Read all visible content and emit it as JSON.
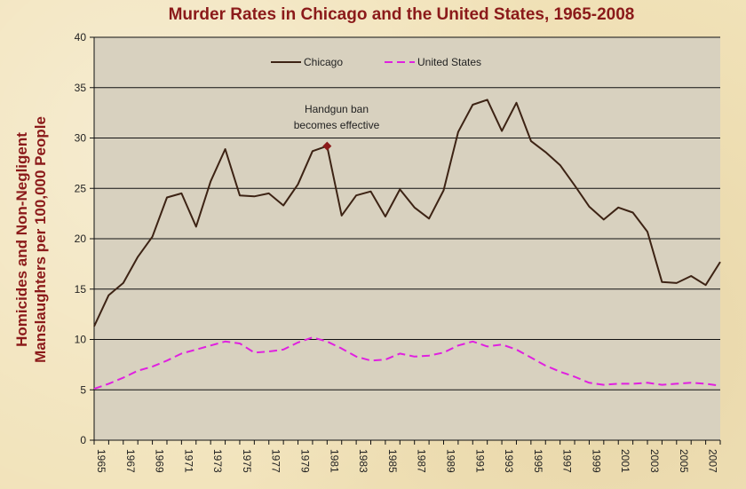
{
  "chart_data": {
    "type": "line",
    "title": "Murder Rates in Chicago and the United States, 1965-2008",
    "ylabel_line1": "Homicides and Non-Negligent",
    "ylabel_line2": "Manslaughters per 100,000 People",
    "xlabel": "",
    "ylim": [
      0,
      40
    ],
    "yticks": [
      0,
      5,
      10,
      15,
      20,
      25,
      30,
      35,
      40
    ],
    "x": [
      1965,
      1966,
      1967,
      1968,
      1969,
      1970,
      1971,
      1972,
      1973,
      1974,
      1975,
      1976,
      1977,
      1978,
      1979,
      1980,
      1981,
      1982,
      1983,
      1984,
      1985,
      1986,
      1987,
      1988,
      1989,
      1990,
      1991,
      1992,
      1993,
      1994,
      1995,
      1996,
      1997,
      1998,
      1999,
      2000,
      2001,
      2002,
      2003,
      2004,
      2005,
      2006,
      2007,
      2008
    ],
    "xtick_labels": [
      "1965",
      "1967",
      "1969",
      "1971",
      "1973",
      "1975",
      "1977",
      "1979",
      "1981",
      "1983",
      "1985",
      "1987",
      "1989",
      "1991",
      "1993",
      "1995",
      "1997",
      "1999",
      "2001",
      "2003",
      "2005",
      "2007"
    ],
    "series": [
      {
        "name": "Chicago",
        "color": "#3d2314",
        "dash": "solid",
        "values": [
          11.3,
          14.4,
          15.6,
          18.2,
          20.2,
          24.1,
          24.5,
          21.2,
          25.7,
          28.9,
          24.3,
          24.2,
          24.5,
          23.3,
          25.4,
          28.7,
          29.2,
          22.3,
          24.3,
          24.7,
          22.2,
          24.9,
          23.1,
          22.0,
          24.8,
          30.6,
          33.3,
          33.8,
          30.7,
          33.5,
          29.7,
          28.6,
          27.3,
          25.3,
          23.2,
          21.9,
          23.1,
          22.6,
          20.7,
          15.7,
          15.6,
          16.3,
          15.4,
          17.7
        ]
      },
      {
        "name": "United States",
        "color": "#e020e0",
        "dash": "dashed",
        "values": [
          5.1,
          5.6,
          6.2,
          6.9,
          7.3,
          7.9,
          8.6,
          9.0,
          9.4,
          9.8,
          9.6,
          8.7,
          8.8,
          9.0,
          9.7,
          10.2,
          9.8,
          9.1,
          8.3,
          7.9,
          8.0,
          8.6,
          8.3,
          8.4,
          8.7,
          9.4,
          9.8,
          9.3,
          9.5,
          9.0,
          8.2,
          7.4,
          6.8,
          6.3,
          5.7,
          5.5,
          5.6,
          5.6,
          5.7,
          5.5,
          5.6,
          5.7,
          5.6,
          5.4
        ]
      }
    ],
    "legend_position": "top-center",
    "grid": true,
    "annotation": {
      "text_line1": "Handgun ban",
      "text_line2": "becomes effective",
      "x": 1981,
      "y": 29.2,
      "marker_color": "#8b1a1a"
    },
    "plot_background": "#d8d1bf"
  }
}
